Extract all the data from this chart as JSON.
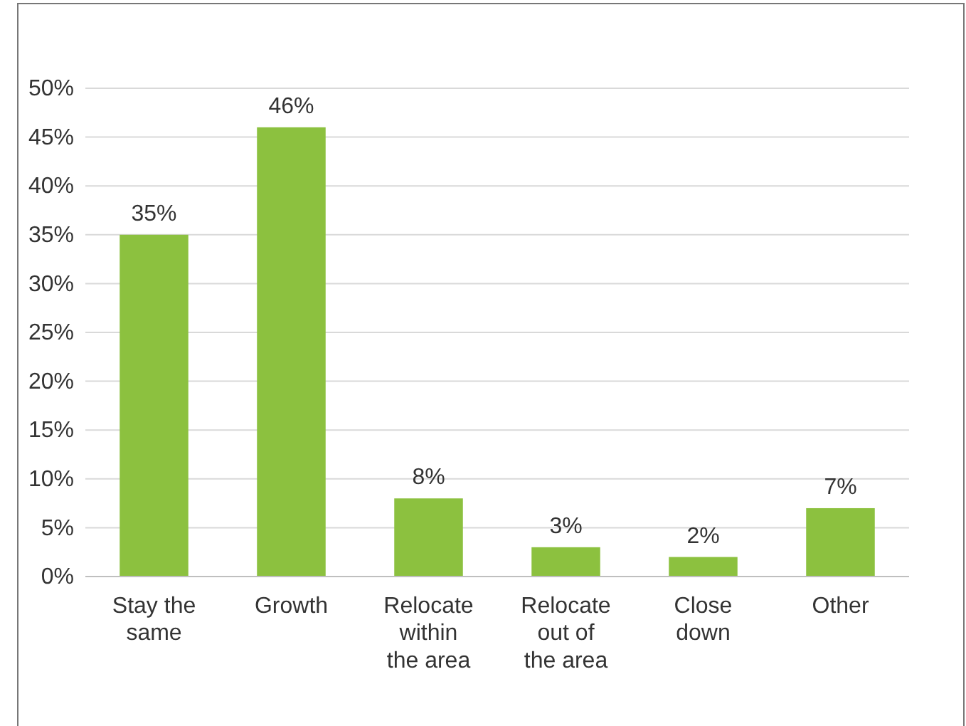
{
  "chart_data": {
    "type": "bar",
    "categories": [
      "Stay the same",
      "Growth",
      "Relocate within the area",
      "Relocate out of the area",
      "Close down",
      "Other"
    ],
    "values": [
      35,
      46,
      8,
      3,
      2,
      7
    ],
    "value_labels": [
      "35%",
      "46%",
      "8%",
      "3%",
      "2%",
      "7%"
    ],
    "color": "#8cc13f",
    "ylim": [
      0,
      50
    ],
    "yticks": [
      {
        "value": 0,
        "label": "0%"
      },
      {
        "value": 5,
        "label": "5%"
      },
      {
        "value": 10,
        "label": "10%"
      },
      {
        "value": 15,
        "label": "15%"
      },
      {
        "value": 20,
        "label": "20%"
      },
      {
        "value": 25,
        "label": "25%"
      },
      {
        "value": 30,
        "label": "30%"
      },
      {
        "value": 35,
        "label": "35%"
      },
      {
        "value": 40,
        "label": "40%"
      },
      {
        "value": 45,
        "label": "45%"
      },
      {
        "value": 50,
        "label": "50%"
      }
    ],
    "grid": "y"
  }
}
